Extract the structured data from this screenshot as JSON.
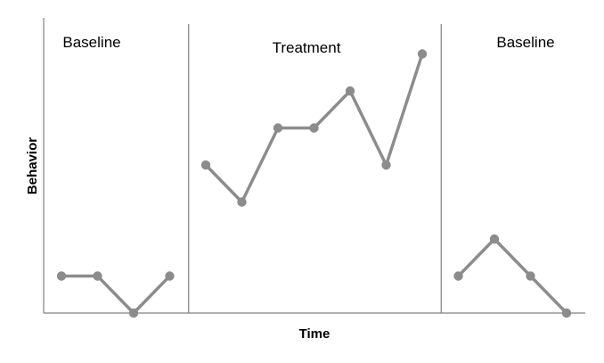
{
  "chart_data": {
    "type": "line",
    "title": "",
    "xlabel": "Time",
    "ylabel": "Behavior",
    "x_ticks_shown": false,
    "y_ticks_shown": false,
    "grid": false,
    "legend": false,
    "ylim": [
      0,
      7
    ],
    "line_color": "#8c8c8c",
    "phases": [
      {
        "label": "Baseline",
        "x": [
          1,
          2,
          3,
          4
        ],
        "values": [
          1,
          1,
          0,
          1
        ]
      },
      {
        "label": "Treatment",
        "x": [
          5,
          6,
          7,
          8,
          9,
          10,
          11
        ],
        "values": [
          4,
          3,
          5,
          5,
          6,
          4,
          7
        ]
      },
      {
        "label": "Baseline",
        "x": [
          12,
          13,
          14,
          15
        ],
        "values": [
          1,
          2,
          1,
          0
        ]
      }
    ],
    "phase_change_lines": [
      4.5,
      11.5
    ],
    "xlim": [
      0.5,
      15.5
    ]
  }
}
